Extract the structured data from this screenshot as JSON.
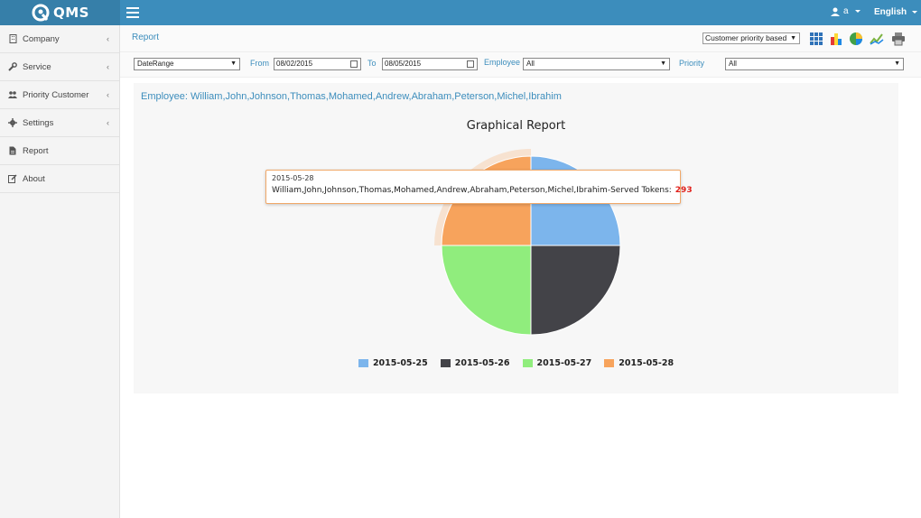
{
  "brand": {
    "name": "QMS"
  },
  "header": {
    "user": "a",
    "language": "English"
  },
  "sidebar": {
    "items": [
      {
        "label": "Company",
        "icon": "building-icon",
        "has_submenu": true
      },
      {
        "label": "Service",
        "icon": "wrench-icon",
        "has_submenu": true
      },
      {
        "label": "Priority Customer",
        "icon": "users-icon",
        "has_submenu": true
      },
      {
        "label": "Settings",
        "icon": "gear-icon",
        "has_submenu": true
      },
      {
        "label": "Report",
        "icon": "file-icon",
        "has_submenu": false
      },
      {
        "label": "About",
        "icon": "edit-icon",
        "has_submenu": false
      }
    ]
  },
  "page": {
    "title": "Report",
    "report_mode": "Customer priority based",
    "toolbar_icons": [
      "grid-icon",
      "bar-chart-icon",
      "pie-chart-icon",
      "line-chart-icon",
      "print-icon"
    ]
  },
  "filters": {
    "range_type": "DateRange",
    "from_label": "From",
    "from_value": "08/02/2015",
    "to_label": "To",
    "to_value": "08/05/2015",
    "employee_label": "Employee",
    "employee_value": "All",
    "priority_label": "Priority",
    "priority_value": "All"
  },
  "report": {
    "employee_line": "Employee: William,John,Johnson,Thomas,Mohamed,Andrew,Abraham,Peterson,Michel,Ibrahim"
  },
  "tooltip": {
    "date": "2015-05-28",
    "label": "William,John,Johnson,Thomas,Mohamed,Andrew,Abraham,Peterson,Michel,Ibrahim-Served Tokens:",
    "value": "293"
  },
  "chart_data": {
    "type": "pie",
    "title": "Graphical Report",
    "categories": [
      "2015-05-25",
      "2015-05-26",
      "2015-05-27",
      "2015-05-28"
    ],
    "values": [
      25,
      25,
      25,
      25
    ],
    "colors": [
      "#7cb5ec",
      "#434348",
      "#90ed7d",
      "#f7a35c"
    ],
    "highlighted": "2015-05-28",
    "legend_position": "bottom"
  }
}
